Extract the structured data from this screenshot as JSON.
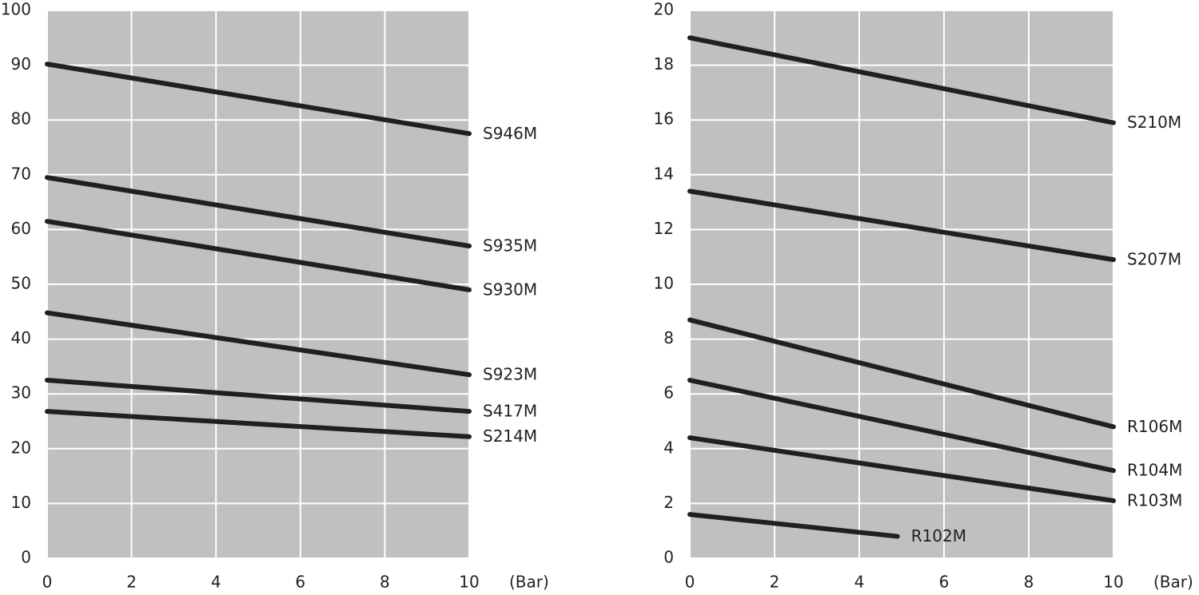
{
  "chart_data": [
    {
      "type": "line",
      "xlabel": "(Bar)",
      "xlim": [
        0,
        10
      ],
      "ylim": [
        0,
        100
      ],
      "xticks": [
        0,
        2,
        4,
        6,
        8,
        10
      ],
      "yticks": [
        0,
        10,
        20,
        30,
        40,
        50,
        60,
        70,
        80,
        90,
        100
      ],
      "grid": true,
      "series": [
        {
          "name": "S946M",
          "color": "#231f20",
          "x": [
            0,
            10
          ],
          "values": [
            90.2,
            77.5
          ]
        },
        {
          "name": "S935M",
          "color": "#231f20",
          "x": [
            0,
            10
          ],
          "values": [
            69.5,
            57
          ]
        },
        {
          "name": "S930M",
          "color": "#231f20",
          "x": [
            0,
            10
          ],
          "values": [
            61.5,
            49
          ]
        },
        {
          "name": "S923M",
          "color": "#231f20",
          "x": [
            0,
            10
          ],
          "values": [
            44.8,
            33.5
          ]
        },
        {
          "name": "S417M",
          "color": "#231f20",
          "x": [
            0,
            10
          ],
          "values": [
            32.5,
            26.8
          ]
        },
        {
          "name": "S214M",
          "color": "#231f20",
          "x": [
            0,
            10
          ],
          "values": [
            26.8,
            22.2
          ]
        }
      ]
    },
    {
      "type": "line",
      "xlabel": "(Bar)",
      "xlim": [
        0,
        10
      ],
      "ylim": [
        0,
        20
      ],
      "xticks": [
        0,
        2,
        4,
        6,
        8,
        10
      ],
      "yticks": [
        0,
        2,
        4,
        6,
        8,
        10,
        12,
        14,
        16,
        18,
        20
      ],
      "grid": true,
      "series": [
        {
          "name": "S210M",
          "color": "#231f20",
          "x": [
            0,
            10
          ],
          "values": [
            19,
            15.9
          ]
        },
        {
          "name": "S207M",
          "color": "#231f20",
          "x": [
            0,
            10
          ],
          "values": [
            13.4,
            10.9
          ]
        },
        {
          "name": "R106M",
          "color": "#231f20",
          "x": [
            0,
            10
          ],
          "values": [
            8.7,
            4.8
          ]
        },
        {
          "name": "R104M",
          "color": "#231f20",
          "x": [
            0,
            10
          ],
          "values": [
            6.5,
            3.2
          ]
        },
        {
          "name": "R103M",
          "color": "#231f20",
          "x": [
            0,
            10
          ],
          "values": [
            4.4,
            2.1
          ]
        },
        {
          "name": "R102M",
          "color": "#231f20",
          "x": [
            0,
            4.9
          ],
          "values": [
            1.6,
            0.8
          ]
        }
      ]
    }
  ]
}
